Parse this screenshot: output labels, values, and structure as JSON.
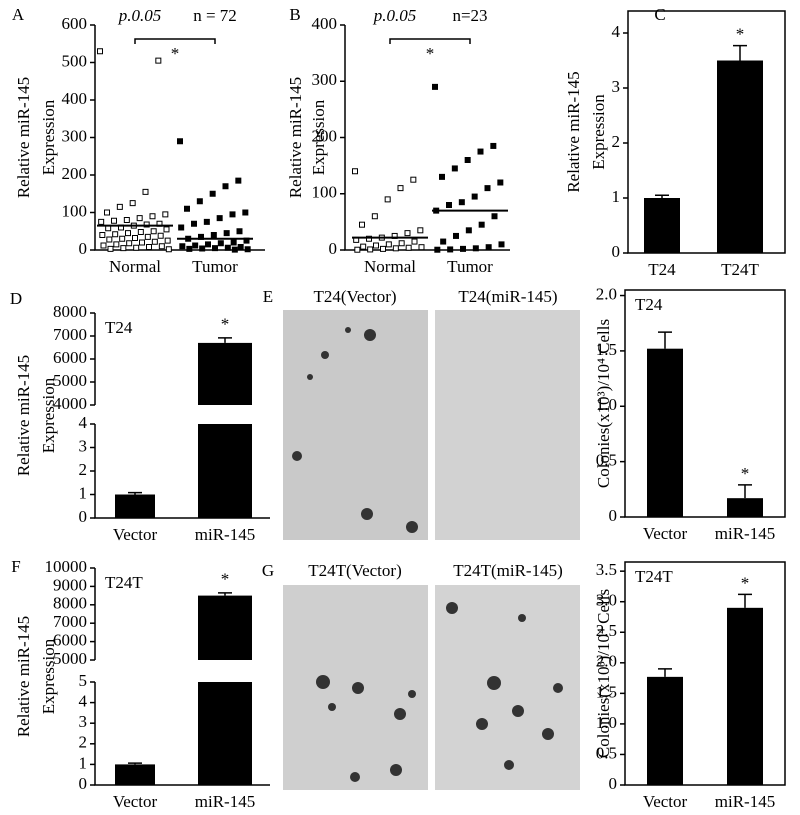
{
  "chart_data": [
    {
      "panel": "A",
      "type": "dot",
      "ylabel": [
        "Relative  miR-145",
        "Expression"
      ],
      "categories": [
        "Normal",
        "Tumor"
      ],
      "values": [
        [
          530,
          505,
          155,
          125,
          115,
          100,
          95,
          90,
          85,
          80,
          78,
          75,
          70,
          68,
          65,
          60,
          58,
          55,
          50,
          48,
          45,
          42,
          40,
          38,
          35,
          32,
          30,
          28,
          25,
          22,
          20,
          18,
          15,
          12,
          10,
          8,
          6,
          5,
          3,
          2
        ],
        [
          290,
          185,
          170,
          150,
          130,
          110,
          100,
          95,
          85,
          75,
          70,
          60,
          50,
          45,
          40,
          35,
          30,
          25,
          20,
          18,
          15,
          12,
          10,
          8,
          6,
          5,
          4,
          3,
          2,
          1
        ]
      ],
      "means": [
        65,
        30
      ],
      "ylim": [
        0,
        600
      ],
      "yticks": [
        0,
        100,
        200,
        300,
        400,
        500,
        600
      ],
      "p_label": "p.0.05",
      "n_label": "n = 72",
      "star": "*"
    },
    {
      "panel": "B",
      "type": "dot",
      "ylabel": [
        "Relative  miR-145",
        "Expression"
      ],
      "categories": [
        "Normal",
        "Tumor"
      ],
      "values": [
        [
          140,
          125,
          110,
          90,
          60,
          45,
          35,
          30,
          25,
          22,
          20,
          18,
          15,
          12,
          10,
          8,
          6,
          5,
          4,
          3,
          2,
          1,
          0.5
        ],
        [
          290,
          185,
          175,
          160,
          145,
          130,
          120,
          110,
          95,
          85,
          80,
          70,
          60,
          45,
          35,
          25,
          15,
          10,
          5,
          3,
          2,
          1,
          0.5
        ]
      ],
      "means": [
        22,
        70
      ],
      "ylim": [
        0,
        400
      ],
      "yticks": [
        0,
        100,
        200,
        300,
        400
      ],
      "p_label": "p.0.05",
      "n_label": "n=23",
      "star": "*"
    },
    {
      "panel": "C",
      "type": "bar",
      "ylabel": [
        "Relative  miR-145",
        "Expression"
      ],
      "categories": [
        "T24",
        "T24T"
      ],
      "values": [
        1.0,
        3.5
      ],
      "errors": [
        0.05,
        0.27
      ],
      "ylim": [
        0,
        4.4
      ],
      "yticks": [
        0,
        1,
        2,
        3,
        4
      ],
      "star": "*",
      "frame": true
    },
    {
      "panel": "D",
      "type": "broken_bar",
      "label": "T24",
      "ylabel": [
        "Relative  miR-145",
        "Expression"
      ],
      "categories": [
        "Vector",
        "miR-145"
      ],
      "values": [
        1.0,
        6700
      ],
      "errors": [
        0.08,
        220
      ],
      "segments": [
        {
          "ylim": [
            0,
            4
          ],
          "yticks": [
            0,
            1,
            2,
            3,
            4
          ]
        },
        {
          "ylim": [
            4000,
            8000
          ],
          "yticks": [
            4000,
            5000,
            6000,
            7000,
            8000
          ]
        }
      ],
      "star": "*"
    },
    {
      "type": "bar",
      "label": "T24",
      "ylabel": [
        "Colonies(x10³)/10⁴ Cells"
      ],
      "categories": [
        "Vector",
        "miR-145"
      ],
      "values": [
        1.52,
        0.17
      ],
      "errors": [
        0.15,
        0.12
      ],
      "ylim": [
        0,
        2.05
      ],
      "yticks": [
        0,
        0.5,
        {
          "value": 1,
          "label": "1.0"
        },
        1.5,
        {
          "value": 2,
          "label": "2.0"
        }
      ],
      "star": "*",
      "frame": true
    },
    {
      "panel": "F",
      "type": "broken_bar",
      "label": "T24T",
      "ylabel": [
        "Relative  miR-145",
        "Expression"
      ],
      "categories": [
        "Vector",
        "miR-145"
      ],
      "values": [
        1.0,
        8500
      ],
      "errors": [
        0.06,
        150
      ],
      "segments": [
        {
          "ylim": [
            0,
            5
          ],
          "yticks": [
            0,
            1,
            2,
            3,
            4,
            5
          ]
        },
        {
          "ylim": [
            5000,
            10000
          ],
          "yticks": [
            5000,
            6000,
            7000,
            8000,
            9000,
            10000
          ]
        }
      ],
      "star": "*"
    },
    {
      "type": "bar",
      "label": "T24T",
      "ylabel": [
        "Colonies(x10³)/10⁴ Cells"
      ],
      "categories": [
        "Vector",
        "miR-145"
      ],
      "values": [
        1.77,
        2.9
      ],
      "errors": [
        0.13,
        0.22
      ],
      "ylim": [
        0,
        3.65
      ],
      "yticks": [
        0,
        0.5,
        {
          "value": 1,
          "label": "1.0"
        },
        1.5,
        {
          "value": 2,
          "label": "2.0"
        },
        2.5,
        {
          "value": 3,
          "label": "3.0"
        },
        3.5
      ],
      "star": "*",
      "frame": true
    }
  ],
  "images": [
    {
      "panel": "E",
      "labels": [
        "T24(Vector)",
        "T24(miR-145)"
      ]
    },
    {
      "panel": "G",
      "labels": [
        "T24T(Vector)",
        "T24T(miR-145)"
      ]
    }
  ]
}
